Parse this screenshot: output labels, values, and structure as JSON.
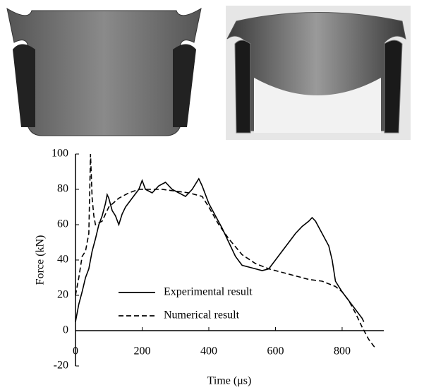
{
  "chart_data": {
    "type": "line",
    "x_label": "Time (μs)",
    "y_label": "Force (kN)",
    "xlim": [
      0,
      925
    ],
    "xticks": [
      0,
      200,
      400,
      600,
      800
    ],
    "ylim": [
      -20,
      100
    ],
    "yticks": [
      -20,
      0,
      20,
      40,
      60,
      80,
      100
    ],
    "legend": "lower center",
    "series": [
      {
        "name": "Experimental result",
        "color": "#000000",
        "style": "solid",
        "x": [
          0,
          10,
          20,
          30,
          40,
          50,
          60,
          70,
          80,
          90,
          95,
          100,
          110,
          120,
          130,
          140,
          150,
          170,
          190,
          200,
          210,
          230,
          250,
          270,
          290,
          310,
          330,
          350,
          370,
          380,
          400,
          420,
          440,
          460,
          480,
          500,
          520,
          540,
          560,
          580,
          600,
          620,
          640,
          660,
          680,
          700,
          710,
          720,
          740,
          760,
          770,
          780,
          800,
          820,
          840,
          860,
          865
        ],
        "values": [
          5,
          15,
          22,
          30,
          35,
          45,
          52,
          60,
          65,
          72,
          77,
          75,
          68,
          65,
          60,
          66,
          70,
          75,
          80,
          85,
          80,
          78,
          82,
          84,
          80,
          78,
          76,
          80,
          86,
          82,
          72,
          65,
          58,
          50,
          42,
          37,
          36,
          35,
          34,
          35,
          40,
          45,
          50,
          55,
          59,
          62,
          64,
          62,
          55,
          48,
          40,
          28,
          22,
          17,
          12,
          7,
          5
        ]
      },
      {
        "name": "Numerical result",
        "color": "#000000",
        "style": "dashed",
        "x": [
          0,
          10,
          20,
          30,
          40,
          45,
          50,
          55,
          60,
          80,
          100,
          130,
          160,
          190,
          220,
          260,
          300,
          340,
          380,
          400,
          430,
          460,
          500,
          540,
          580,
          620,
          660,
          700,
          740,
          780,
          800,
          820,
          840,
          860,
          880,
          900
        ],
        "values": [
          20,
          30,
          42,
          45,
          55,
          100,
          75,
          65,
          60,
          62,
          70,
          75,
          78,
          80,
          80,
          80,
          79,
          78,
          76,
          70,
          60,
          52,
          43,
          38,
          35,
          33,
          31,
          29,
          28,
          25,
          22,
          17,
          10,
          2,
          -5,
          -10
        ]
      }
    ]
  }
}
